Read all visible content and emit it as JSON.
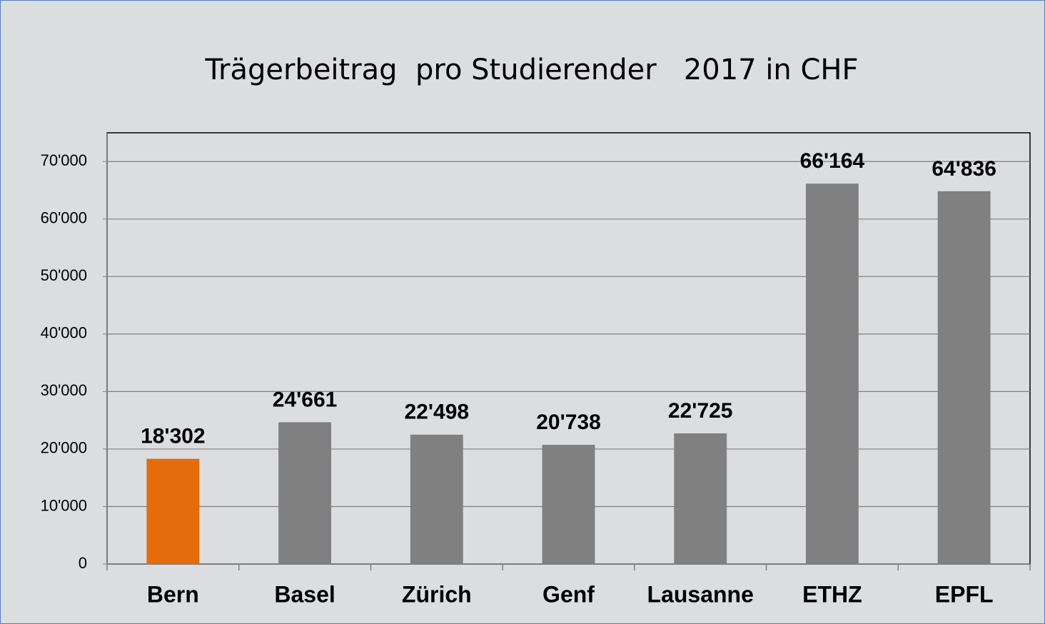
{
  "chart_data": {
    "type": "bar",
    "title": "Trägerbeitrag  pro Studierender   2017 in CHF",
    "categories": [
      "Bern",
      "Basel",
      "Zürich",
      "Genf",
      "Lausanne",
      "ETHZ",
      "EPFL"
    ],
    "values": [
      18302,
      24661,
      22498,
      20738,
      22725,
      66164,
      64836
    ],
    "value_labels": [
      "18'302",
      "24'661",
      "22'498",
      "20'738",
      "22'725",
      "66'164",
      "64'836"
    ],
    "colors": [
      "#e46c0a",
      "#808080",
      "#808080",
      "#808080",
      "#808080",
      "#808080",
      "#808080"
    ],
    "ylim": [
      0,
      75000
    ],
    "yticks": [
      0,
      {
        "value": 10000,
        "label": "10'000"
      },
      {
        "value": 20000,
        "label": "20'000"
      },
      {
        "value": 30000,
        "label": "30'000"
      },
      {
        "value": 40000,
        "label": "40'000"
      },
      {
        "value": 50000,
        "label": "50'000"
      },
      {
        "value": 60000,
        "label": "60'000"
      },
      {
        "value": 70000,
        "label": "70'000"
      }
    ],
    "grid": true
  }
}
